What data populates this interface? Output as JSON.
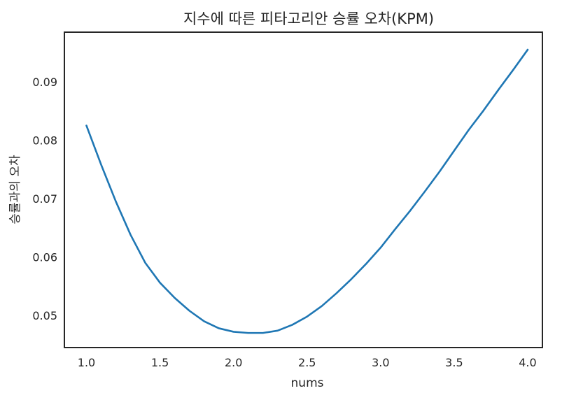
{
  "chart_data": {
    "type": "line",
    "title": "지수에 따른 피타고리안 승률 오차(KPM)",
    "xlabel": "nums",
    "ylabel": "승률과의 오차",
    "xlim": [
      0.85,
      4.1
    ],
    "ylim": [
      0.0445,
      0.0985
    ],
    "xticks": [
      "1.0",
      "1.5",
      "2.0",
      "2.5",
      "3.0",
      "3.5",
      "4.0"
    ],
    "yticks": [
      "0.05",
      "0.06",
      "0.07",
      "0.08",
      "0.09"
    ],
    "grid": false,
    "series": [
      {
        "color": "#1f77b4",
        "x": [
          1.0,
          1.1,
          1.2,
          1.3,
          1.4,
          1.5,
          1.6,
          1.7,
          1.8,
          1.9,
          2.0,
          2.1,
          2.2,
          2.3,
          2.4,
          2.5,
          2.6,
          2.7,
          2.8,
          2.9,
          3.0,
          3.1,
          3.2,
          3.3,
          3.4,
          3.5,
          3.6,
          3.7,
          3.8,
          3.9,
          4.0
        ],
        "y": [
          0.0825,
          0.0758,
          0.0695,
          0.0638,
          0.059,
          0.0556,
          0.053,
          0.0508,
          0.049,
          0.0478,
          0.0472,
          0.047,
          0.047,
          0.0474,
          0.0484,
          0.0498,
          0.0516,
          0.0538,
          0.0562,
          0.0588,
          0.0616,
          0.0648,
          0.0679,
          0.0712,
          0.0746,
          0.0782,
          0.0818,
          0.0851,
          0.0886,
          0.092,
          0.0955
        ]
      }
    ]
  }
}
